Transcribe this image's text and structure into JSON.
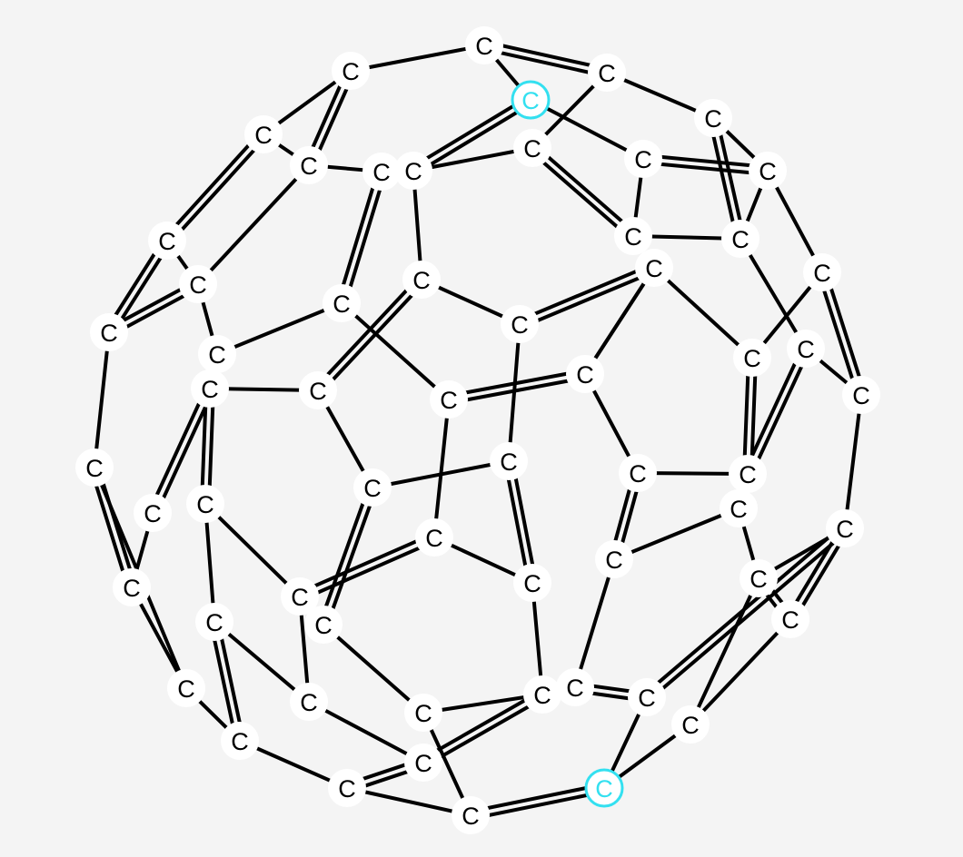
{
  "molecule": {
    "name": "",
    "atom_label": "C",
    "atom_count": 60,
    "highlighted_atom_color": "#33e0f0",
    "highlighted_atoms": [
      9,
      20
    ]
  }
}
